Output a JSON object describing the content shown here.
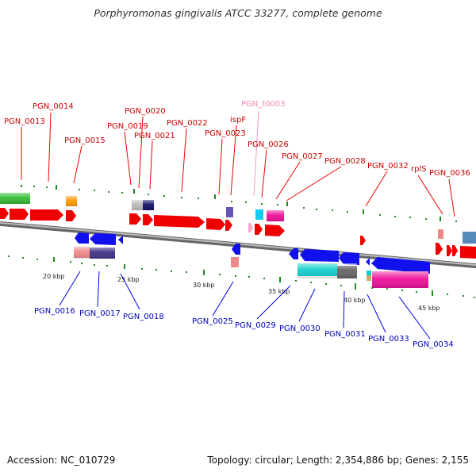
{
  "title": "Porphyromonas gingivalis ATCC 33277, complete genome",
  "footer": {
    "accession": "Accession: NC_010729",
    "summary": "Topology: circular; Length: 2,354,886 bp; Genes: 2,155"
  },
  "colors": {
    "forward_label": "#cc0000",
    "reverse_label": "#0000bb",
    "trna_label": "#ee88bb",
    "backbone": "#888888",
    "tick": "#228822"
  },
  "scale_labels": [
    "20 kbp",
    "25 kbp",
    "30 kbp",
    "35 kbp",
    "40 kbp",
    "45 kbp"
  ],
  "forward_genes": [
    "PGN_0013",
    "PGN_0014",
    "PGN_0015",
    "PGN_0019",
    "PGN_0020",
    "PGN_0021",
    "PGN_0022",
    "PGN_0023",
    "ispF",
    "PGN_t0003",
    "PGN_0026",
    "PGN_0027",
    "PGN_0028",
    "PGN_0032",
    "rplS",
    "PGN_0036"
  ],
  "reverse_genes": [
    "PGN_0016",
    "PGN_0017",
    "PGN_0018",
    "PGN_0025",
    "PGN_0029",
    "PGN_0030",
    "PGN_0031",
    "PGN_0033",
    "PGN_0034"
  ]
}
